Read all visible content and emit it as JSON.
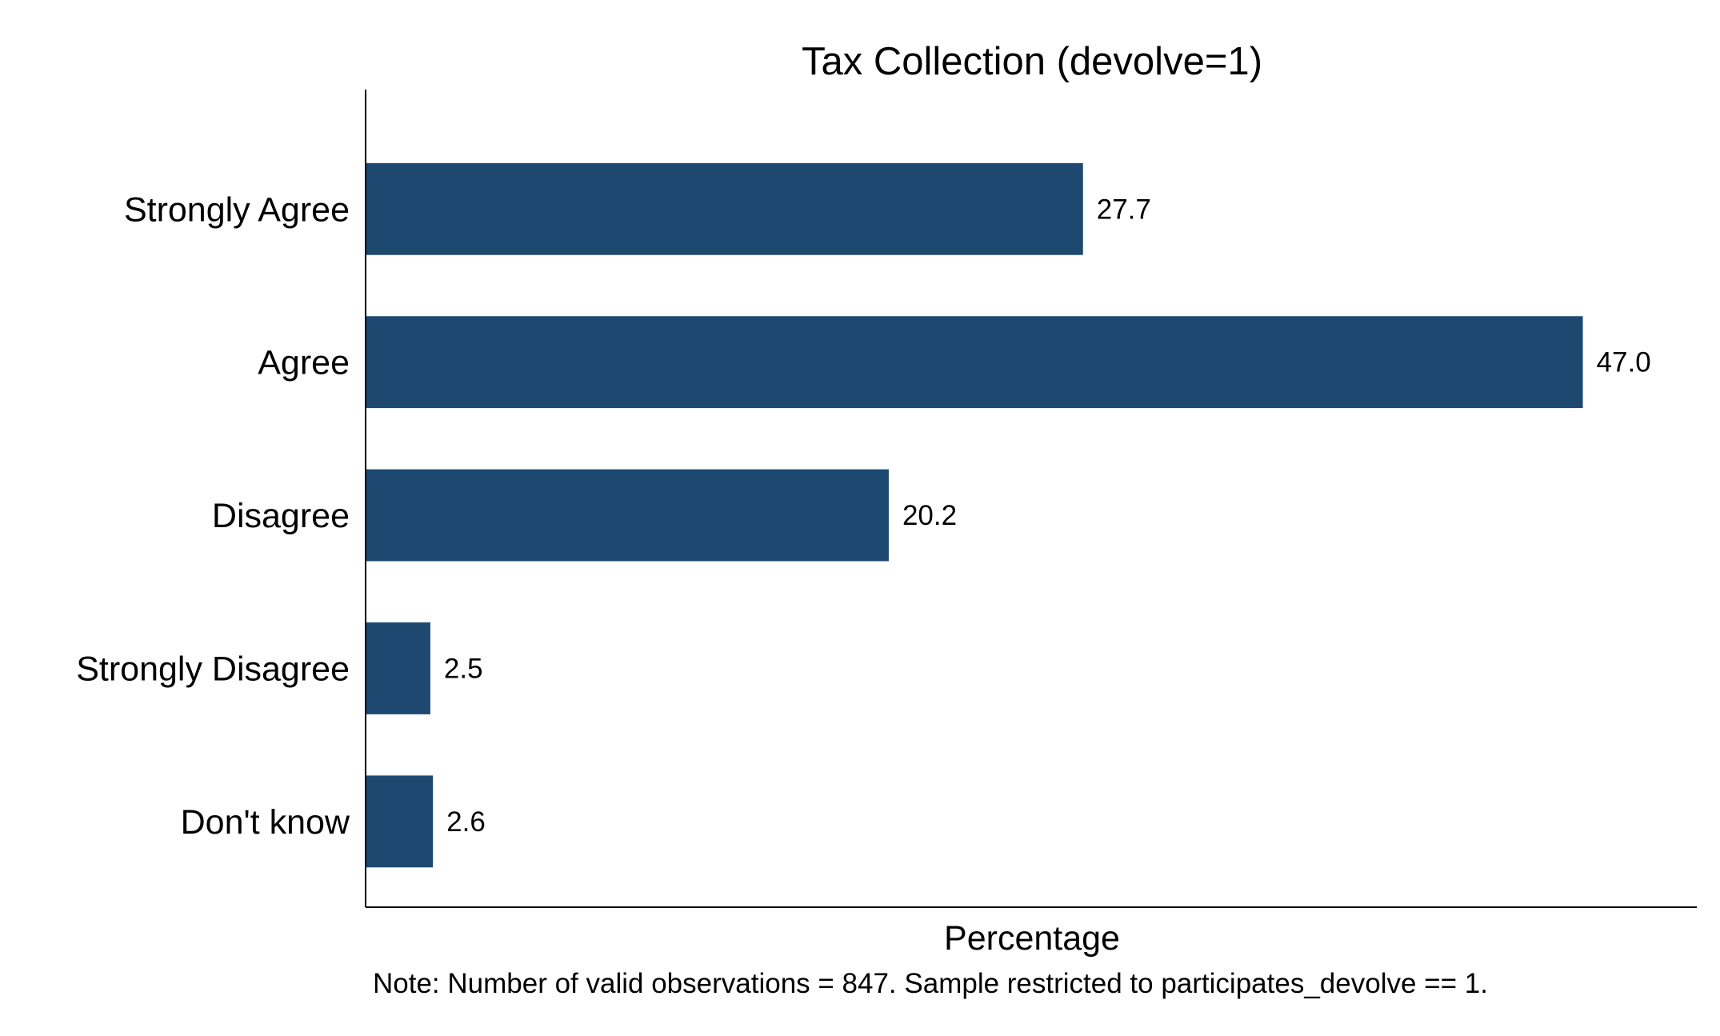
{
  "chart_data": {
    "type": "bar",
    "orientation": "horizontal",
    "title": "Tax Collection (devolve=1)",
    "xlabel": "Percentage",
    "ylabel": "",
    "categories": [
      "Strongly Agree",
      "Agree",
      "Disagree",
      "Strongly Disagree",
      "Don't know"
    ],
    "values": [
      27.7,
      47.0,
      20.2,
      2.5,
      2.6
    ],
    "value_labels": [
      "27.7",
      "47.0",
      "20.2",
      "2.5",
      "2.6"
    ],
    "xlim": [
      0,
      51.4
    ],
    "grid": false,
    "legend": "none",
    "bar_color": "#1d4870",
    "note": "Note: Number of valid observations = 847. Sample restricted to participates_devolve == 1."
  }
}
